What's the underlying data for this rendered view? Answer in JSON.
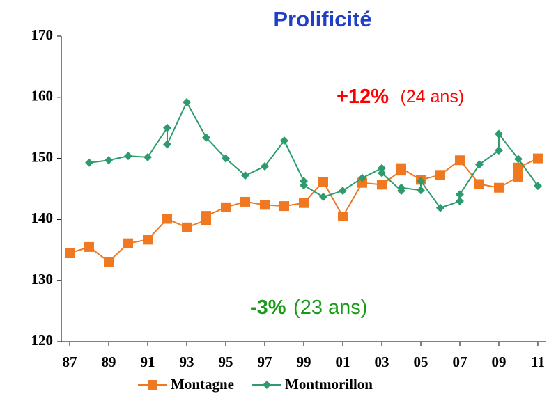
{
  "chart_data": {
    "type": "line",
    "title": "Prolificité",
    "annotations": [
      {
        "bold": "+12%",
        "text": "(24 ans)",
        "color": "#ff0000"
      },
      {
        "bold": "-3%",
        "text": "(23 ans)",
        "color": "#1a9a1a"
      }
    ],
    "xlim": [
      1986.57,
      2011.43
    ],
    "xticks": [
      {
        "value": 1987,
        "label": "87"
      },
      {
        "value": 1989,
        "label": "89"
      },
      {
        "value": 1991,
        "label": "91"
      },
      {
        "value": 1993,
        "label": "93"
      },
      {
        "value": 1995,
        "label": "95"
      },
      {
        "value": 1997,
        "label": "97"
      },
      {
        "value": 1999,
        "label": "99"
      },
      {
        "value": 2001,
        "label": "01"
      },
      {
        "value": 2003,
        "label": "03"
      },
      {
        "value": 2005,
        "label": "05"
      },
      {
        "value": 2007,
        "label": "07"
      },
      {
        "value": 2009,
        "label": "09"
      },
      {
        "value": 2011,
        "label": "11"
      }
    ],
    "ylim": [
      120,
      170
    ],
    "yticks": [
      120,
      130,
      140,
      150,
      160,
      170
    ],
    "series": [
      {
        "name": "Montagne",
        "color": "#f07820",
        "marker": "square",
        "x": [
          1987,
          1988,
          1989,
          1990,
          1991,
          1992,
          1993,
          1994,
          1994,
          1995,
          1996,
          1997,
          1998,
          1999,
          2000,
          2001,
          2002,
          2003,
          2004,
          2004,
          2005,
          2006,
          2007,
          2008,
          2009,
          2010,
          2010,
          2011
        ],
        "values": [
          134.5,
          135.5,
          133.1,
          136.1,
          136.7,
          140.1,
          138.7,
          139.9,
          140.6,
          142.0,
          142.9,
          142.4,
          142.2,
          142.7,
          146.2,
          140.5,
          146.0,
          145.7,
          148.0,
          148.4,
          146.5,
          147.3,
          149.7,
          145.8,
          145.2,
          147.0,
          148.5,
          150.0
        ]
      },
      {
        "name": "Montmorillon",
        "color": "#2e9b6e",
        "marker": "diamond",
        "x": [
          1988,
          1989,
          1990,
          1991,
          1992,
          1992,
          1993,
          1994,
          1995,
          1996,
          1997,
          1998,
          1999,
          1999,
          2000,
          2001,
          2002,
          2003,
          2003,
          2004,
          2004,
          2005,
          2005,
          2006,
          2007,
          2007,
          2008,
          2009,
          2009,
          2010,
          2011
        ],
        "values": [
          149.3,
          149.7,
          150.4,
          150.2,
          155.0,
          152.3,
          159.2,
          153.4,
          150.0,
          147.2,
          148.7,
          152.9,
          146.3,
          145.6,
          143.7,
          144.7,
          146.8,
          148.4,
          147.6,
          144.7,
          145.2,
          144.8,
          146.3,
          141.9,
          143.0,
          144.1,
          149.0,
          151.3,
          154.0,
          149.9,
          145.5
        ]
      }
    ]
  }
}
